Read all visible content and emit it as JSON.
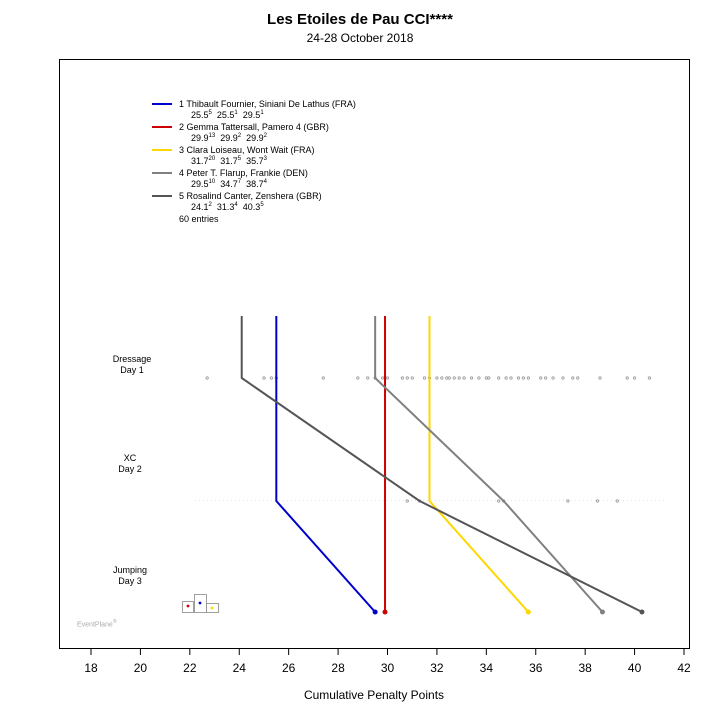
{
  "chart_data": {
    "type": "line",
    "title": "Les Etoiles de Pau CCI****",
    "subtitle": "24-28 October 2018",
    "xlabel": "Cumulative Penalty Points",
    "xlim": [
      16.8,
      42
    ],
    "x_ticks": [
      "18",
      "20",
      "22",
      "24",
      "26",
      "28",
      "30",
      "32",
      "34",
      "36",
      "38",
      "40",
      "42"
    ],
    "stages": [
      {
        "line1": "Dressage",
        "line2": "Day 1"
      },
      {
        "line1": "XC",
        "line2": "Day 2"
      },
      {
        "line1": "Jumping",
        "line2": "Day 3"
      }
    ],
    "series": [
      {
        "rank": "1",
        "rider": "Thibault Fournier,",
        "horse": "Siniani De Lathus (FRA)",
        "color": "#0000cc",
        "values": [
          25.5,
          25.5,
          29.5
        ],
        "scores": [
          {
            "v": "25.5",
            "r": "5"
          },
          {
            "v": "25.5",
            "r": "1"
          },
          {
            "v": "29.5",
            "r": "1"
          }
        ]
      },
      {
        "rank": "2",
        "rider": "Gemma Tattersall,",
        "horse": "Pamero 4 (GBR)",
        "color": "#cc0000",
        "values": [
          29.9,
          29.9,
          29.9
        ],
        "scores": [
          {
            "v": "29.9",
            "r": "13"
          },
          {
            "v": "29.9",
            "r": "2"
          },
          {
            "v": "29.9",
            "r": "2"
          }
        ]
      },
      {
        "rank": "3",
        "rider": "Clara Loiseau,",
        "horse": "Wont Wait (FRA)",
        "color": "#ffd700",
        "values": [
          31.7,
          31.7,
          35.7
        ],
        "scores": [
          {
            "v": "31.7",
            "r": "20"
          },
          {
            "v": "31.7",
            "r": "5"
          },
          {
            "v": "35.7",
            "r": "3"
          }
        ]
      },
      {
        "rank": "4",
        "rider": "Peter T. Flarup,",
        "horse": "Frankie (DEN)",
        "color": "#808080",
        "values": [
          29.5,
          34.7,
          38.7
        ],
        "scores": [
          {
            "v": "29.5",
            "r": "10"
          },
          {
            "v": "34.7",
            "r": "7"
          },
          {
            "v": "38.7",
            "r": "4"
          }
        ]
      },
      {
        "rank": "5",
        "rider": "Rosalind Canter,",
        "horse": "Zenshera (GBR)",
        "color": "#555555",
        "values": [
          24.1,
          31.3,
          40.3
        ],
        "scores": [
          {
            "v": "24.1",
            "r": "2"
          },
          {
            "v": "31.3",
            "r": "4"
          },
          {
            "v": "40.3",
            "r": "5"
          }
        ]
      }
    ],
    "entries_note": "60 entries",
    "dressage_field": [
      22.7,
      25.0,
      25.3,
      25.5,
      27.4,
      28.8,
      29.2,
      29.5,
      29.8,
      29.9,
      30.0,
      30.6,
      30.8,
      31.0,
      31.5,
      31.7,
      32.0,
      32.2,
      32.4,
      32.5,
      32.7,
      32.9,
      33.1,
      33.4,
      33.7,
      34.0,
      34.1,
      34.5,
      34.8,
      35.0,
      35.3,
      35.5,
      35.7,
      36.2,
      36.4,
      36.7,
      37.1,
      37.5,
      37.7,
      38.6,
      39.7,
      40.0,
      40.6
    ],
    "xc_field": [
      30.8,
      31.3,
      34.5,
      34.7,
      37.3,
      38.5,
      39.3
    ],
    "podium_colors": [
      "#cc0000",
      "#0000cc",
      "#ffd700"
    ],
    "brand": "EventPlane",
    "brand_mark": "®",
    "grid": false
  }
}
